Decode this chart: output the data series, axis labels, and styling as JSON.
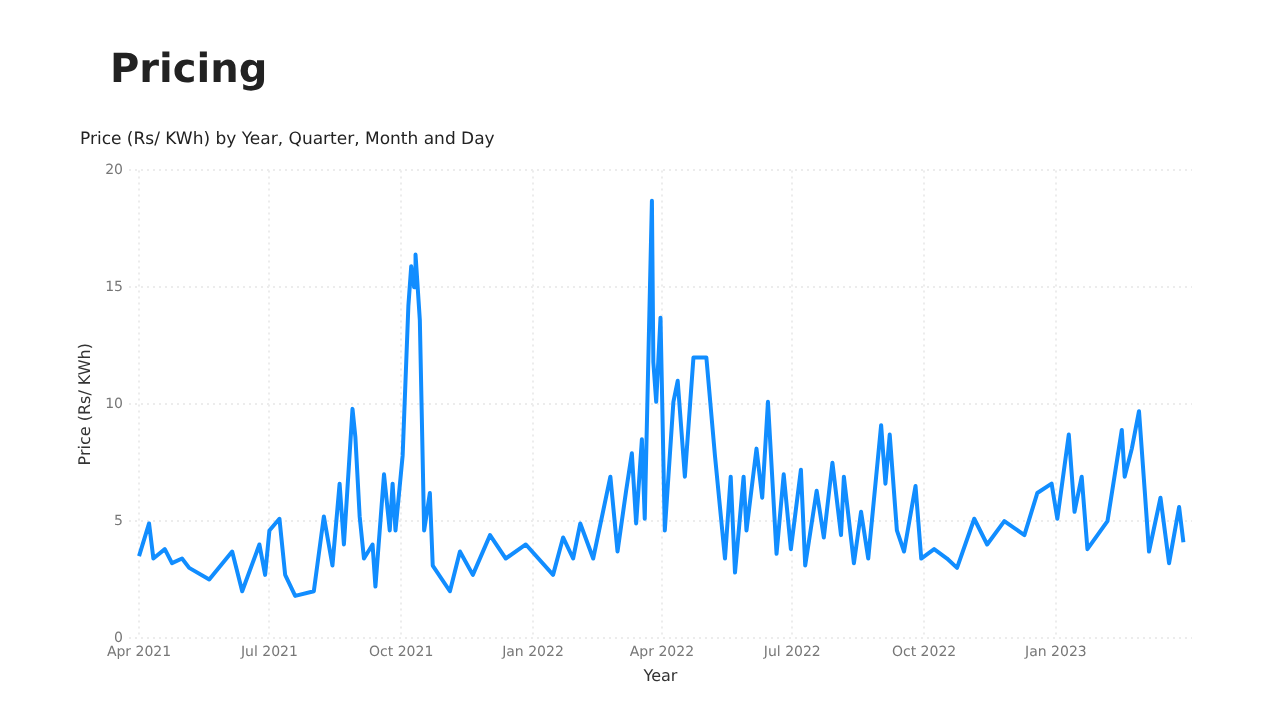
{
  "chart_data": {
    "type": "line",
    "title": "Pricing",
    "subtitle": "Price (Rs/ KWh) by Year, Quarter, Month and Day",
    "xlabel": "Year",
    "ylabel": "Price (Rs/ KWh)",
    "x": [
      "2021-04-01",
      "2021-04-08",
      "2021-04-11",
      "2021-04-19",
      "2021-04-24",
      "2021-05-01",
      "2021-05-06",
      "2021-05-20",
      "2021-06-05",
      "2021-06-12",
      "2021-06-24",
      "2021-06-28",
      "2021-07-01",
      "2021-07-08",
      "2021-07-12",
      "2021-07-19",
      "2021-08-01",
      "2021-08-08",
      "2021-08-14",
      "2021-08-19",
      "2021-08-22",
      "2021-08-28",
      "2021-08-30",
      "2021-09-02",
      "2021-09-05",
      "2021-09-11",
      "2021-09-13",
      "2021-09-19",
      "2021-09-23",
      "2021-09-25",
      "2021-09-27",
      "2021-10-02",
      "2021-10-06",
      "2021-10-08",
      "2021-10-10",
      "2021-10-11",
      "2021-10-14",
      "2021-10-17",
      "2021-10-21",
      "2021-10-23",
      "2021-11-04",
      "2021-11-11",
      "2021-11-20",
      "2021-12-02",
      "2021-12-13",
      "2021-12-27",
      "2022-01-15",
      "2022-01-22",
      "2022-01-29",
      "2022-02-03",
      "2022-02-12",
      "2022-02-24",
      "2022-03-01",
      "2022-03-07",
      "2022-03-11",
      "2022-03-14",
      "2022-03-18",
      "2022-03-20",
      "2022-03-25",
      "2022-03-26",
      "2022-03-28",
      "2022-03-31",
      "2022-04-03",
      "2022-04-09",
      "2022-04-12",
      "2022-04-17",
      "2022-04-23",
      "2022-05-02",
      "2022-05-08",
      "2022-05-15",
      "2022-05-19",
      "2022-05-22",
      "2022-05-28",
      "2022-05-30",
      "2022-06-06",
      "2022-06-10",
      "2022-06-14",
      "2022-06-20",
      "2022-06-25",
      "2022-06-30",
      "2022-07-07",
      "2022-07-10",
      "2022-07-18",
      "2022-07-23",
      "2022-07-29",
      "2022-08-04",
      "2022-08-06",
      "2022-08-13",
      "2022-08-18",
      "2022-08-23",
      "2022-09-01",
      "2022-09-04",
      "2022-09-07",
      "2022-09-12",
      "2022-09-17",
      "2022-09-25",
      "2022-09-29",
      "2022-10-08",
      "2022-10-17",
      "2022-10-24",
      "2022-11-05",
      "2022-11-14",
      "2022-11-26",
      "2022-12-10",
      "2022-12-19",
      "2022-12-29",
      "2023-01-02",
      "2023-01-10",
      "2023-01-14",
      "2023-01-19",
      "2023-01-23",
      "2023-02-06",
      "2023-02-16",
      "2023-02-18",
      "2023-02-23",
      "2023-02-28",
      "2023-03-04",
      "2023-03-07",
      "2023-03-15",
      "2023-03-21",
      "2023-03-28",
      "2023-03-31"
    ],
    "series": [
      {
        "color": "#118dff",
        "values": [
          3.5,
          4.9,
          3.4,
          3.8,
          3.2,
          3.4,
          3.0,
          2.5,
          3.7,
          2.0,
          4.0,
          2.7,
          4.6,
          5.1,
          2.7,
          1.8,
          2.0,
          5.2,
          3.1,
          6.6,
          4.0,
          9.8,
          8.6,
          5.2,
          3.4,
          4.0,
          2.2,
          7.0,
          4.6,
          6.6,
          4.6,
          7.8,
          14.2,
          15.9,
          15.0,
          16.4,
          13.6,
          4.6,
          6.2,
          3.1,
          2.0,
          3.7,
          2.7,
          4.4,
          3.4,
          4.0,
          2.7,
          4.3,
          3.4,
          4.9,
          3.4,
          6.9,
          3.7,
          6.3,
          7.9,
          4.9,
          8.5,
          5.1,
          18.7,
          11.8,
          10.1,
          13.7,
          4.6,
          10.1,
          11.0,
          6.9,
          12.0,
          12.0,
          7.8,
          3.4,
          6.9,
          2.8,
          6.9,
          4.6,
          8.1,
          6.0,
          10.1,
          3.6,
          7.0,
          3.8,
          7.2,
          3.1,
          6.3,
          4.3,
          7.5,
          4.4,
          6.9,
          3.2,
          5.4,
          3.4,
          9.1,
          6.6,
          8.7,
          4.6,
          3.7,
          6.5,
          3.4,
          3.8,
          3.4,
          3.0,
          5.1,
          4.0,
          5.0,
          4.4,
          6.2,
          6.6,
          5.1,
          8.7,
          5.4,
          6.9,
          3.8,
          5.0,
          8.9,
          6.9,
          8.1,
          9.7,
          6.3,
          3.7,
          6.0,
          3.2,
          5.6,
          4.1
        ]
      }
    ],
    "xlim": [
      "2021-03-25",
      "2023-04-06"
    ],
    "xticks": [
      {
        "value": "2021-04-01",
        "label": "Apr 2021"
      },
      {
        "value": "2021-07-01",
        "label": "Jul 2021"
      },
      {
        "value": "2021-10-01",
        "label": "Oct 2021"
      },
      {
        "value": "2022-01-01",
        "label": "Jan 2022"
      },
      {
        "value": "2022-04-01",
        "label": "Apr 2022"
      },
      {
        "value": "2022-07-01",
        "label": "Jul 2022"
      },
      {
        "value": "2022-10-01",
        "label": "Oct 2022"
      },
      {
        "value": "2023-01-01",
        "label": "Jan 2023"
      }
    ],
    "ylim": [
      0,
      20
    ],
    "yticks": [
      0,
      5,
      10,
      15,
      20
    ],
    "grid": true,
    "legend": false,
    "marker": "none",
    "line_style": "solid"
  }
}
